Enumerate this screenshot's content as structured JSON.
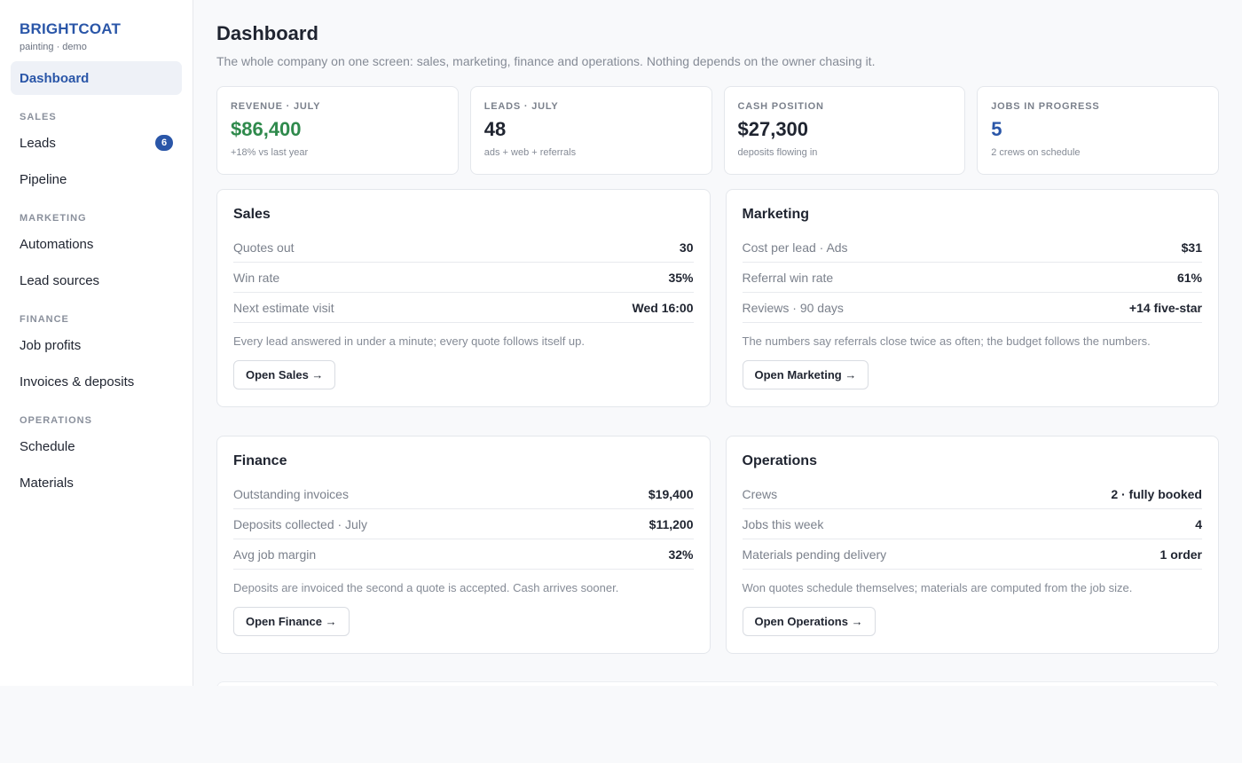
{
  "colors": {
    "brand": "#2a56a8",
    "positive": "#2f8a4c",
    "accent": "#2a56a8",
    "text": "#1f2430"
  },
  "sidebar": {
    "brand_name": "BRIGHTCOAT",
    "brand_sub": "painting · demo",
    "dashboard_label": "Dashboard",
    "sections": [
      {
        "title": "SALES",
        "items": [
          {
            "label": "Leads",
            "badge": "6"
          },
          {
            "label": "Pipeline"
          }
        ]
      },
      {
        "title": "MARKETING",
        "items": [
          {
            "label": "Automations"
          },
          {
            "label": "Lead sources"
          }
        ]
      },
      {
        "title": "FINANCE",
        "items": [
          {
            "label": "Job profits"
          },
          {
            "label": "Invoices & deposits"
          }
        ]
      },
      {
        "title": "OPERATIONS",
        "items": [
          {
            "label": "Schedule"
          },
          {
            "label": "Materials"
          }
        ]
      }
    ]
  },
  "header": {
    "title": "Dashboard",
    "subtitle": "The whole company on one screen: sales, marketing, finance and operations. Nothing depends on the owner chasing it."
  },
  "kpis": [
    {
      "label": "REVENUE · JULY",
      "value": "$86,400",
      "sub": "+18% vs last year",
      "tone": "positive"
    },
    {
      "label": "LEADS · JULY",
      "value": "48",
      "sub": "ads + web + referrals",
      "tone": "default"
    },
    {
      "label": "CASH POSITION",
      "value": "$27,300",
      "sub": "deposits flowing in",
      "tone": "default"
    },
    {
      "label": "JOBS IN PROGRESS",
      "value": "5",
      "sub": "2 crews on schedule",
      "tone": "accent"
    }
  ],
  "panels": [
    {
      "title": "Sales",
      "rows": [
        {
          "label": "Quotes out",
          "value": "30"
        },
        {
          "label": "Win rate",
          "value": "35%"
        },
        {
          "label": "Next estimate visit",
          "value": "Wed 16:00"
        }
      ],
      "note": "Every lead answered in under a minute; every quote follows itself up.",
      "button": "Open Sales →"
    },
    {
      "title": "Marketing",
      "rows": [
        {
          "label": "Cost per lead · Ads",
          "value": "$31"
        },
        {
          "label": "Referral win rate",
          "value": "61%"
        },
        {
          "label": "Reviews · 90 days",
          "value": "+14 five-star"
        }
      ],
      "note": "The numbers say referrals close twice as often; the budget follows the numbers.",
      "button": "Open Marketing →"
    },
    {
      "title": "Finance",
      "rows": [
        {
          "label": "Outstanding invoices",
          "value": "$19,400"
        },
        {
          "label": "Deposits collected · July",
          "value": "$11,200"
        },
        {
          "label": "Avg job margin",
          "value": "32%"
        }
      ],
      "note": "Deposits are invoiced the second a quote is accepted. Cash arrives sooner.",
      "button": "Open Finance →"
    },
    {
      "title": "Operations",
      "rows": [
        {
          "label": "Crews",
          "value": "2 · fully booked"
        },
        {
          "label": "Jobs this week",
          "value": "4"
        },
        {
          "label": "Materials pending delivery",
          "value": "1 order"
        }
      ],
      "note": "Won quotes schedule themselves; materials are computed from the job size.",
      "button": "Open Operations →"
    }
  ]
}
